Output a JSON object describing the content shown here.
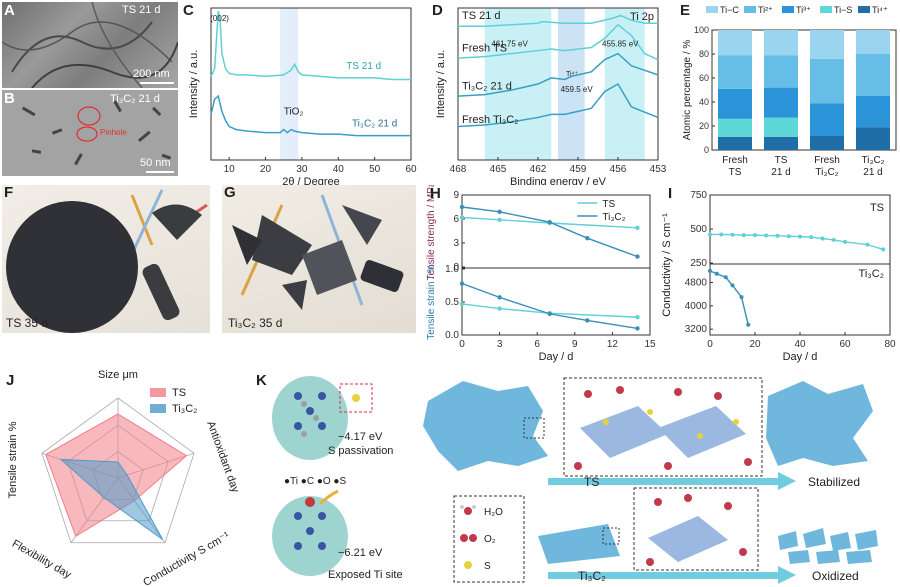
{
  "labels": {
    "A": "A",
    "B": "B",
    "C": "C",
    "D": "D",
    "E": "E",
    "F": "F",
    "G": "G",
    "H": "H",
    "I": "I",
    "J": "J",
    "K": "K"
  },
  "panelA": {
    "caption": "TS 21 d",
    "scale": "200 nm"
  },
  "panelB": {
    "caption": "Ti₃C₂ 21 d",
    "scale": "50 nm",
    "pinhole": "Pinhole"
  },
  "panelF": {
    "caption": "TS 35 d"
  },
  "panelG": {
    "caption": "Ti₃C₂ 35 d"
  },
  "colors": {
    "TS": "#5fd0d6",
    "Ti3C2": "#3a9fc4",
    "TSdark": "#2aa7b3",
    "J_TS": "#f07f86",
    "J_Ti3C2": "#4e9ac9",
    "Ti_C": "#9ad4ef",
    "Ti2": "#66bde6",
    "Ti3": "#2b93d8",
    "Ti_S": "#5fd6d8",
    "Ti4": "#1f6ea8"
  },
  "panelC": {
    "ylabel": "Intensity / a.u.",
    "xlabel": "2θ / Degree",
    "peak002": "(002)",
    "tio2": "TiO₂",
    "ts_label": "TS 21 d",
    "ti_label": "Ti₃C₂ 21 d"
  },
  "panelD": {
    "ylabel": "Intensity / a.u.",
    "xlabel": "Binding energy / eV",
    "title": "Ti 2p",
    "ts21": "TS 21 d",
    "freshTS": "Fresh TS",
    "ti21": "Ti₃C₂ 21 d",
    "freshTi": "Fresh Ti₃C₂",
    "e1": "461.75 eV",
    "e2": "455.85 eV",
    "e3": "459.5 eV",
    "ti4": "Ti⁴⁺"
  },
  "panelE": {
    "ylabel": "Atomic percentage / %",
    "legend": [
      "Ti−C",
      "Ti²⁺",
      "Ti³⁺",
      "Ti−S",
      "Ti⁴⁺"
    ],
    "cats": [
      [
        "Fresh",
        "TS"
      ],
      [
        "TS",
        "21 d"
      ],
      [
        "Fresh",
        "Ti₃C₂"
      ],
      [
        "Ti₃C₂",
        "21 d"
      ]
    ]
  },
  "panelH": {
    "ylabel_top": "Tensile strength / MPa",
    "ylabel_bot": "Tensile strain / %",
    "xlabel": "Day / d",
    "legend": [
      "TS",
      "Ti₃C₂"
    ]
  },
  "panelI": {
    "ylabel": "Conductivity / S cm⁻¹",
    "xlabel": "Day / d",
    "ts": "TS",
    "ti": "Ti₃C₂"
  },
  "panelJ": {
    "axes": [
      "Size μm",
      "Antioxidant day",
      "Conductivity S cm⁻¹",
      "Flexibility day",
      "Tensile strain %"
    ],
    "legend": [
      "TS",
      "Ti₃C₂"
    ]
  },
  "panelK": {
    "e1": "−4.17 eV",
    "s1": "S passivation",
    "e2": "−6.21 eV",
    "s2": "Exposed Ti site",
    "atoms": "●Ti ●C ●O ●S",
    "ts": "TS",
    "stab": "Stabilized",
    "ti": "Ti₃C₂",
    "oxi": "Oxidized",
    "h2o": "H₂O",
    "o2": "O₂",
    "s": "S"
  },
  "chart_data": [
    {
      "panel": "C",
      "type": "line",
      "xlabel": "2θ / Degree",
      "ylabel": "Intensity / a.u.",
      "xlim": [
        0,
        60
      ],
      "xticks": [
        10,
        20,
        30,
        40,
        50,
        60
      ],
      "series": [
        {
          "name": "TS 21 d",
          "x": [
            5,
            6,
            7,
            7.5,
            8,
            9,
            10,
            12,
            15,
            20,
            25,
            27,
            28,
            29,
            30,
            35,
            40,
            45,
            50,
            55,
            60
          ],
          "y": [
            0.55,
            0.6,
            0.98,
            0.92,
            0.7,
            0.6,
            0.57,
            0.56,
            0.56,
            0.55,
            0.56,
            0.59,
            0.63,
            0.58,
            0.56,
            0.55,
            0.54,
            0.54,
            0.54,
            0.53,
            0.53
          ]
        },
        {
          "name": "Ti₃C₂ 21 d",
          "x": [
            5,
            6,
            7,
            8,
            9,
            10,
            12,
            15,
            20,
            24,
            25,
            26,
            27,
            28,
            30,
            35,
            40,
            45,
            50,
            55,
            60
          ],
          "y": [
            0.3,
            0.4,
            0.42,
            0.32,
            0.26,
            0.22,
            0.2,
            0.19,
            0.18,
            0.18,
            0.2,
            0.18,
            0.2,
            0.19,
            0.18,
            0.17,
            0.17,
            0.16,
            0.16,
            0.16,
            0.16
          ]
        }
      ]
    },
    {
      "panel": "D",
      "type": "line",
      "xlabel": "Binding energy / eV",
      "ylabel": "Intensity / a.u.",
      "xlim": [
        468,
        453
      ],
      "xticks": [
        468,
        465,
        462,
        459,
        456,
        453
      ],
      "series": [
        {
          "name": "TS 21 d",
          "x": [
            468,
            466,
            464,
            462,
            461.7,
            460,
            458,
            456.5,
            455.8,
            455,
            454,
            453
          ],
          "y": [
            0.88,
            0.88,
            0.89,
            0.9,
            0.91,
            0.9,
            0.9,
            0.93,
            0.95,
            0.92,
            0.9,
            0.9
          ]
        },
        {
          "name": "Fresh TS",
          "x": [
            468,
            466,
            464,
            462,
            461,
            460,
            458,
            457,
            456,
            455,
            454,
            453
          ],
          "y": [
            0.67,
            0.68,
            0.7,
            0.72,
            0.73,
            0.72,
            0.74,
            0.8,
            0.89,
            0.82,
            0.7,
            0.66
          ]
        },
        {
          "name": "Ti₃C₂ 21 d",
          "x": [
            468,
            466,
            464,
            462,
            461,
            460,
            459.5,
            458,
            457,
            456,
            455,
            453
          ],
          "y": [
            0.42,
            0.43,
            0.46,
            0.5,
            0.54,
            0.53,
            0.55,
            0.58,
            0.66,
            0.7,
            0.62,
            0.56
          ]
        },
        {
          "name": "Fresh Ti₃C₂",
          "x": [
            468,
            466,
            464,
            462,
            461,
            460,
            459,
            458,
            457,
            456,
            455,
            453
          ],
          "y": [
            0.22,
            0.23,
            0.25,
            0.28,
            0.3,
            0.3,
            0.32,
            0.34,
            0.45,
            0.5,
            0.35,
            0.28
          ]
        }
      ]
    },
    {
      "panel": "E",
      "type": "bar",
      "ylabel": "Atomic percentage / %",
      "ylim": [
        0,
        100
      ],
      "yticks": [
        0,
        20,
        40,
        60,
        80,
        100
      ],
      "categories": [
        "Fresh TS",
        "TS 21 d",
        "Fresh Ti₃C₂",
        "Ti₃C₂ 21 d"
      ],
      "series": [
        {
          "name": "Ti⁴⁺",
          "values": [
            11,
            11,
            12,
            19
          ]
        },
        {
          "name": "Ti−S",
          "values": [
            15,
            16,
            0,
            0
          ]
        },
        {
          "name": "Ti³⁺",
          "values": [
            25,
            25,
            27,
            26
          ]
        },
        {
          "name": "Ti²⁺",
          "values": [
            28,
            27,
            37,
            35
          ]
        },
        {
          "name": "Ti−C",
          "values": [
            21,
            21,
            24,
            20
          ]
        }
      ]
    },
    {
      "panel": "H",
      "type": "line",
      "xlabel": "Day / d",
      "xlim": [
        0,
        15
      ],
      "xticks": [
        0,
        3,
        6,
        9,
        12,
        15
      ],
      "top": {
        "ylabel": "Tensile strength / MPa",
        "ylim": [
          0,
          9
        ],
        "yticks": [
          0,
          3,
          6,
          9
        ],
        "series": [
          {
            "name": "TS",
            "x": [
              0,
              3,
              7,
              14
            ],
            "y": [
              6.2,
              5.9,
              5.5,
              4.9
            ]
          },
          {
            "name": "Ti₃C₂",
            "x": [
              0,
              3,
              7,
              10,
              14
            ],
            "y": [
              7.5,
              6.9,
              5.6,
              3.6,
              1.3
            ]
          }
        ]
      },
      "bottom": {
        "ylabel": "Tensile strain / %",
        "ylim": [
          0,
          1
        ],
        "yticks": [
          0.0,
          0.5,
          1.0
        ],
        "series": [
          {
            "name": "TS",
            "x": [
              0,
              3,
              7,
              14
            ],
            "y": [
              0.47,
              0.4,
              0.33,
              0.27
            ]
          },
          {
            "name": "Ti₃C₂",
            "x": [
              0,
              3,
              7,
              10,
              14
            ],
            "y": [
              0.78,
              0.57,
              0.32,
              0.22,
              0.1
            ]
          }
        ]
      }
    },
    {
      "panel": "I",
      "type": "line",
      "xlabel": "Day / d",
      "xlim": [
        0,
        80
      ],
      "xticks": [
        0,
        20,
        40,
        60,
        80
      ],
      "top": {
        "ylabel": "Conductivity / S cm⁻¹",
        "ylim": [
          250,
          700
        ],
        "yticks": [
          250,
          500,
          750
        ],
        "series": [
          {
            "name": "TS",
            "x": [
              0,
              5,
              10,
              15,
              20,
              25,
              30,
              35,
              40,
              45,
              50,
              55,
              60,
              70,
              77
            ],
            "y": [
              460,
              460,
              458,
              455,
              455,
              452,
              450,
              447,
              444,
              440,
              430,
              420,
              405,
              385,
              350
            ]
          }
        ]
      },
      "bottom": {
        "ylim": [
          3000,
          5400
        ],
        "yticks": [
          3200,
          4000,
          4800
        ],
        "series": [
          {
            "name": "Ti₃C₂",
            "x": [
              0,
              3,
              7,
              10,
              14,
              17
            ],
            "y": [
              5200,
              5100,
              4980,
              4700,
              4300,
              3350
            ]
          }
        ]
      }
    },
    {
      "panel": "J",
      "type": "radar",
      "axes": [
        "Size",
        "Antioxidant",
        "Conductivity",
        "Flexibility",
        "Tensile strain"
      ],
      "series": [
        {
          "name": "TS",
          "values": [
            0.8,
            0.9,
            0.35,
            0.9,
            0.95
          ]
        },
        {
          "name": "Ti₃C₂",
          "values": [
            0.2,
            0.12,
            0.95,
            0.3,
            0.75
          ]
        }
      ]
    }
  ]
}
